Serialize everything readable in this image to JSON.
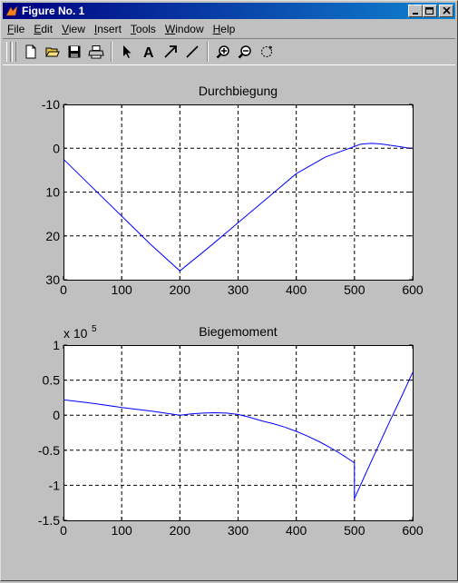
{
  "window": {
    "title": "Figure No. 1",
    "title_color": "#000080"
  },
  "menu": [
    {
      "accel": "F",
      "rest": "ile"
    },
    {
      "accel": "E",
      "rest": "dit"
    },
    {
      "accel": "V",
      "rest": "iew"
    },
    {
      "accel": "I",
      "rest": "nsert"
    },
    {
      "accel": "T",
      "rest": "ools"
    },
    {
      "accel": "W",
      "rest": "indow"
    },
    {
      "accel": "H",
      "rest": "elp"
    }
  ],
  "toolbar_icons": [
    "new-file-icon",
    "open-folder-icon",
    "save-icon",
    "print-icon",
    "select-arrow-icon",
    "insert-text-icon",
    "insert-arrow-icon",
    "insert-line-icon",
    "zoom-in-icon",
    "zoom-out-icon",
    "rotate-icon"
  ],
  "chart_data": [
    {
      "type": "line",
      "title": "Durchbiegung",
      "xlim": [
        0,
        600
      ],
      "ylim": [
        -10,
        30
      ],
      "y_reversed": true,
      "xticks": [
        0,
        100,
        200,
        300,
        400,
        500,
        600
      ],
      "yticks": [
        -10,
        0,
        10,
        20,
        30
      ],
      "grid": true,
      "line_color": "#0000ff",
      "series": [
        {
          "x": [
            0,
            50,
            100,
            150,
            200,
            250,
            300,
            350,
            400,
            450,
            500,
            510,
            520,
            530,
            540,
            550,
            560,
            570,
            580,
            590,
            600
          ],
          "y": [
            2.5,
            9.0,
            15.5,
            22.0,
            28.0,
            22.6,
            17.0,
            11.4,
            5.8,
            2.0,
            -0.4,
            -0.9,
            -1.05,
            -1.1,
            -1.05,
            -0.9,
            -0.7,
            -0.5,
            -0.3,
            -0.1,
            0.0
          ]
        }
      ]
    },
    {
      "type": "line",
      "title": "Biegemoment",
      "exponent_label": "x 10",
      "exponent_power": "5",
      "xlim": [
        0,
        600
      ],
      "ylim": [
        -1.5,
        1
      ],
      "xticks": [
        0,
        100,
        200,
        300,
        400,
        500,
        600
      ],
      "yticks": [
        1,
        0.5,
        0,
        -0.5,
        -1,
        -1.5
      ],
      "grid": true,
      "line_color": "#0000ff",
      "series": [
        {
          "x": [
            0,
            50,
            100,
            150,
            200,
            220,
            240,
            260,
            280,
            300,
            320,
            340,
            360,
            380,
            400,
            420,
            440,
            460,
            480,
            500,
            500,
            520,
            540,
            560,
            580,
            600
          ],
          "y": [
            0.22,
            0.17,
            0.11,
            0.06,
            0.0,
            0.02,
            0.03,
            0.035,
            0.03,
            0.01,
            -0.03,
            -0.08,
            -0.12,
            -0.17,
            -0.23,
            -0.3,
            -0.38,
            -0.47,
            -0.57,
            -0.68,
            -1.19,
            -0.82,
            -0.46,
            -0.1,
            0.25,
            0.61
          ]
        }
      ]
    }
  ]
}
